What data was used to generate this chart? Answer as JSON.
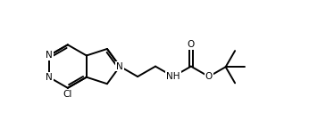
{
  "bg_color": "#ffffff",
  "line_color": "#000000",
  "line_width": 1.4,
  "font_size": 7.5,
  "fig_width": 3.65,
  "fig_height": 1.45,
  "xlim": [
    -2.8,
    5.2
  ],
  "ylim": [
    -1.7,
    1.7
  ]
}
